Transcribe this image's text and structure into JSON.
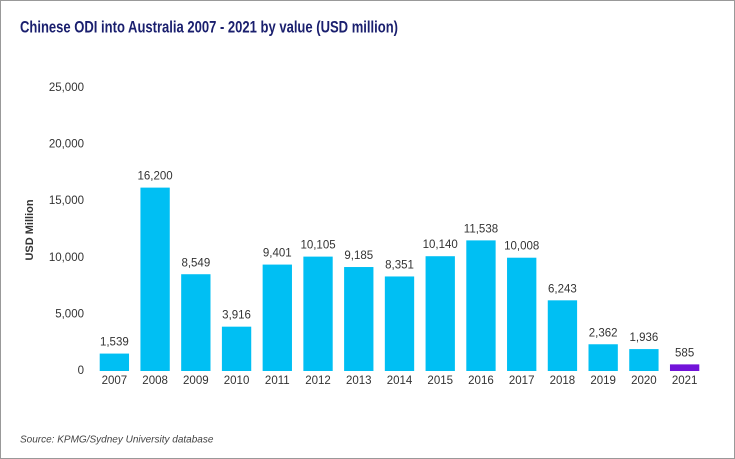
{
  "chart_data": {
    "type": "bar",
    "title": "Chinese ODI into Australia 2007 - 2021 by value (USD million)",
    "y_label": "USD Million",
    "source": "Source: KPMG/Sydney University database",
    "categories": [
      "2007",
      "2008",
      "2009",
      "2010",
      "2011",
      "2012",
      "2013",
      "2014",
      "2015",
      "2016",
      "2017",
      "2018",
      "2019",
      "2020",
      "2021"
    ],
    "values": [
      1539,
      16200,
      8549,
      3916,
      9401,
      10105,
      9185,
      8351,
      10140,
      11538,
      10008,
      6243,
      2362,
      1936,
      585
    ],
    "value_labels": [
      "1,539",
      "16,200",
      "8,549",
      "3,916",
      "9,401",
      "10,105",
      "9,185",
      "8,351",
      "10,140",
      "11,538",
      "10,008",
      "6,243",
      "2,362",
      "1,936",
      "585"
    ],
    "colors": [
      "#00bff3",
      "#00bff3",
      "#00bff3",
      "#00bff3",
      "#00bff3",
      "#00bff3",
      "#00bff3",
      "#00bff3",
      "#00bff3",
      "#00bff3",
      "#00bff3",
      "#00bff3",
      "#00bff3",
      "#00bff3",
      "#7213d9"
    ],
    "ylim": [
      0,
      25000
    ],
    "yticks": [
      0,
      {
        "value": 5000,
        "label": "5,000"
      },
      {
        "value": 10000,
        "label": "10,000"
      },
      {
        "value": 15000,
        "label": "15,000"
      },
      {
        "value": 20000,
        "label": "20,000"
      },
      {
        "value": 25000,
        "label": "25,000"
      }
    ],
    "grid": false
  }
}
